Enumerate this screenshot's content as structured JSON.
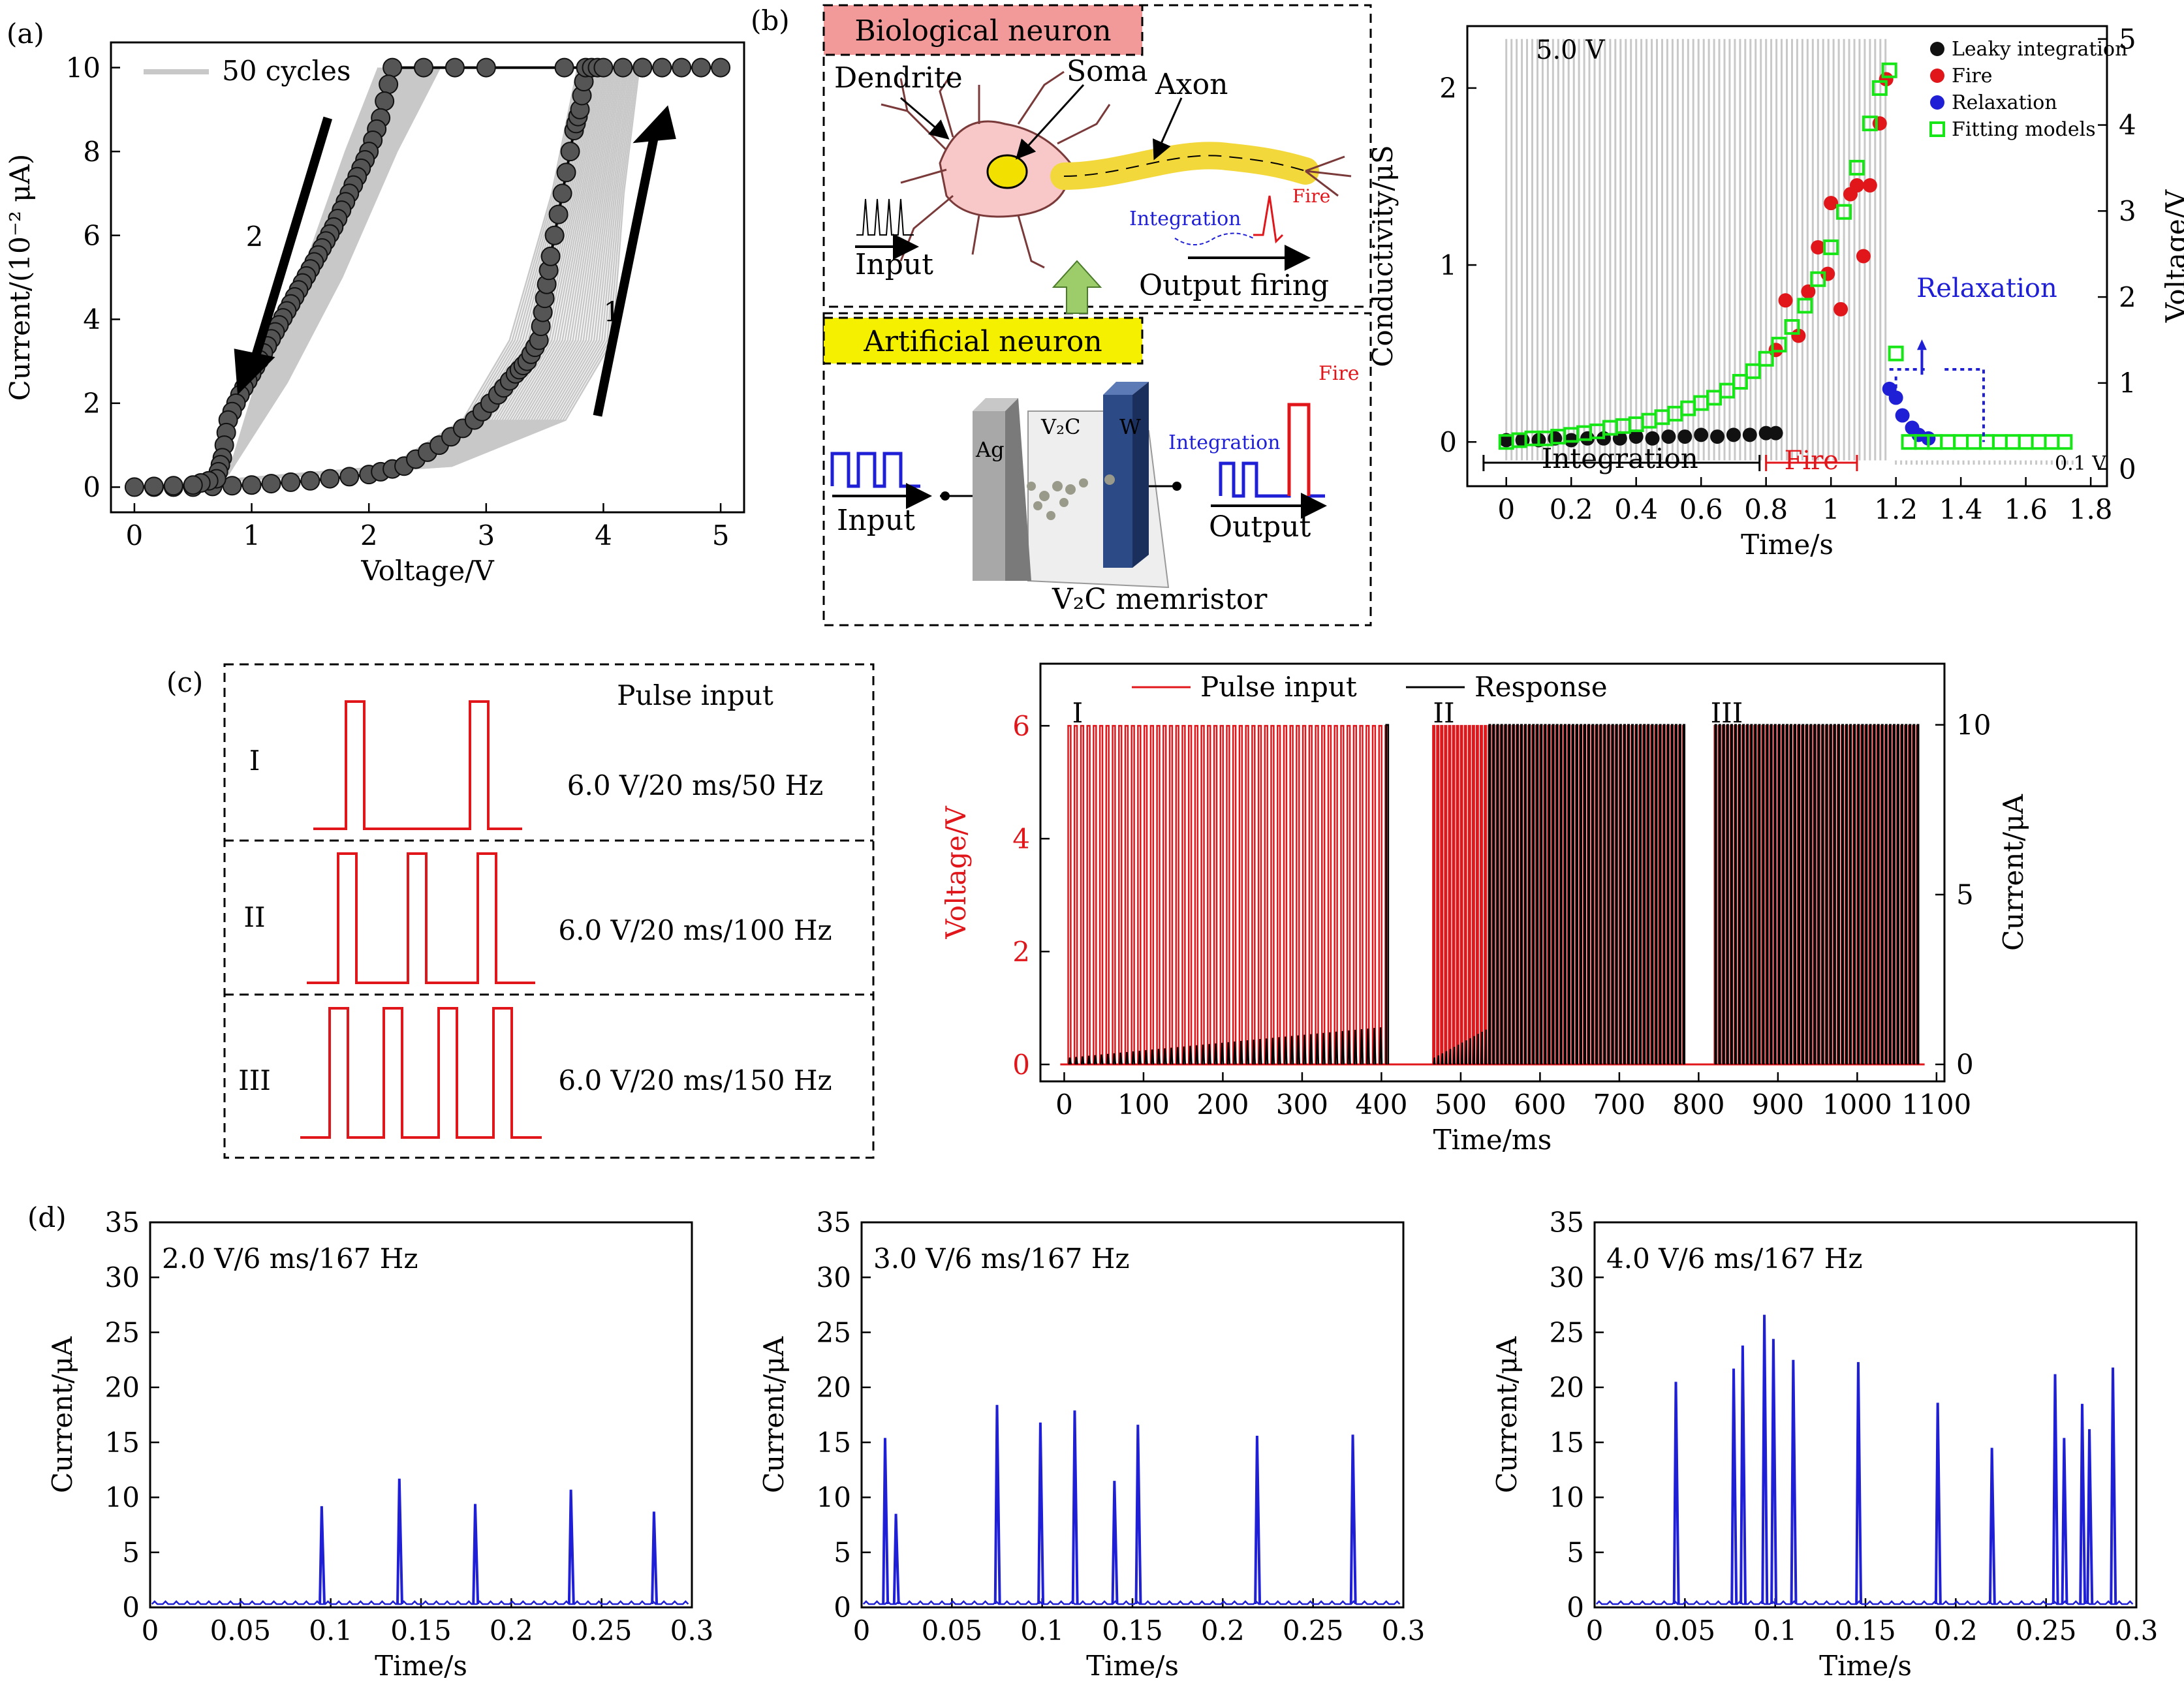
{
  "panel_labels": {
    "a": "(a)",
    "b": "(b)",
    "c": "(c)",
    "d": "(d)"
  },
  "colors": {
    "red": "#e0161b",
    "blue": "#1f1fd6",
    "green": "#16e616",
    "gray": "#c8c8c8",
    "pink": "#f29a9a",
    "yellow": "#f5f000",
    "axon": "#f2d83a",
    "dark_plate": "#2c4a86"
  },
  "schematic": {
    "bio_title": "Biological neuron",
    "dendrite": "Dendrite",
    "soma": "Soma",
    "axon": "Axon",
    "integration": "Integration",
    "fire": "Fire",
    "input": "Input",
    "output_firing": "Output firing",
    "art_title": "Artificial neuron",
    "ag": "Ag",
    "v2c": "V₂C",
    "w": "W",
    "art_integration": "Integration",
    "art_fire": "Fire",
    "art_input": "Input",
    "art_output": "Output",
    "memristor": "V₂C memristor"
  },
  "pulse_schematic": {
    "title": "Pulse input",
    "rows": [
      {
        "roman": "I",
        "label": "6.0 V/20 ms/50 Hz",
        "pulses": 2
      },
      {
        "roman": "II",
        "label": "6.0 V/20 ms/100 Hz",
        "pulses": 3
      },
      {
        "roman": "III",
        "label": "6.0 V/20 ms/150 Hz",
        "pulses": 4
      }
    ]
  },
  "chart_data": [
    {
      "id": "a",
      "type": "line",
      "xlabel": "Voltage/V",
      "ylabel": "Current/(10⁻² μA)",
      "xlim": [
        -0.2,
        5.2
      ],
      "ylim": [
        -0.6,
        10.6
      ],
      "xticks": [
        0,
        1,
        2,
        3,
        4,
        5
      ],
      "yticks": [
        0,
        2,
        4,
        6,
        8,
        10
      ],
      "legend": [
        "50 cycles"
      ],
      "annotations": [
        "1",
        "2"
      ],
      "series": [
        {
          "name": "sweep1",
          "x": [
            0,
            0.5,
            1.0,
            1.5,
            2.0,
            2.3,
            2.6,
            2.9,
            3.1,
            3.25,
            3.35,
            3.45,
            3.5,
            3.55,
            3.65,
            3.75,
            3.8,
            3.85,
            4.0,
            4.5,
            5.0
          ],
          "y": [
            0,
            0,
            0.05,
            0.15,
            0.3,
            0.5,
            1.0,
            1.6,
            2.2,
            2.7,
            3.0,
            3.5,
            4.5,
            5.5,
            7.0,
            8.5,
            9.0,
            10,
            10,
            10,
            10
          ]
        },
        {
          "name": "sweep2",
          "x": [
            5.0,
            3.0,
            2.2,
            2.1,
            2.0,
            1.9,
            1.8,
            1.7,
            1.6,
            1.5,
            1.4,
            1.3,
            1.2,
            1.1,
            1.0,
            0.9,
            0.8,
            0.75,
            0.7,
            0.5,
            0
          ],
          "y": [
            10,
            10,
            10,
            8.8,
            8.0,
            7.4,
            6.8,
            6.2,
            5.7,
            5.2,
            4.7,
            4.2,
            3.7,
            3.2,
            2.7,
            2.2,
            1.6,
            0.7,
            0.2,
            0.05,
            0
          ]
        }
      ]
    },
    {
      "id": "b",
      "type": "scatter",
      "xlabel": "Time/s",
      "ylabel": "Conductivity/μS",
      "ylabel_right": "Voltage/V",
      "xlim": [
        -0.12,
        1.85
      ],
      "ylim": [
        -0.25,
        2.35
      ],
      "ylim_right": [
        -0.2,
        5.15
      ],
      "xticks": [
        0,
        0.2,
        0.4,
        0.6,
        0.8,
        1.0,
        1.2,
        1.4,
        1.6,
        1.8
      ],
      "yticks": [
        0,
        1,
        2
      ],
      "yticks_right": [
        0,
        1,
        2,
        3,
        4,
        5
      ],
      "annotations": [
        "5.0 V",
        "0.1 V",
        "Integration",
        "Fire",
        "Relaxation"
      ],
      "legend": [
        "Leaky integration",
        "Fire",
        "Relaxation",
        "Fitting models"
      ],
      "series": [
        {
          "name": "Leaky integration",
          "x": [
            0,
            0.05,
            0.1,
            0.15,
            0.2,
            0.25,
            0.3,
            0.35,
            0.4,
            0.45,
            0.5,
            0.55,
            0.6,
            0.65,
            0.7,
            0.75,
            0.8,
            0.83
          ],
          "y": [
            0.01,
            0.01,
            0.01,
            0.02,
            0.01,
            0.02,
            0.02,
            0.02,
            0.03,
            0.02,
            0.03,
            0.03,
            0.04,
            0.03,
            0.04,
            0.04,
            0.05,
            0.05
          ]
        },
        {
          "name": "Fire",
          "x": [
            0.83,
            0.86,
            0.9,
            0.93,
            0.96,
            0.99,
            1.0,
            1.03,
            1.06,
            1.08,
            1.1,
            1.12,
            1.15,
            1.17
          ],
          "y": [
            0.52,
            0.8,
            0.6,
            0.85,
            1.1,
            0.95,
            1.35,
            0.75,
            1.4,
            1.45,
            1.05,
            1.45,
            1.8,
            2.05
          ]
        },
        {
          "name": "Relaxation",
          "x": [
            1.18,
            1.2,
            1.22,
            1.25,
            1.27,
            1.3
          ],
          "y": [
            0.3,
            0.25,
            0.15,
            0.08,
            0.04,
            0.02
          ]
        },
        {
          "name": "Fitting models",
          "x": [
            0,
            0.04,
            0.08,
            0.12,
            0.16,
            0.2,
            0.24,
            0.28,
            0.32,
            0.36,
            0.4,
            0.44,
            0.48,
            0.52,
            0.56,
            0.6,
            0.64,
            0.68,
            0.72,
            0.76,
            0.8,
            0.84,
            0.88,
            0.92,
            0.96,
            1.0,
            1.04,
            1.08,
            1.12,
            1.15,
            1.18,
            1.2,
            1.24,
            1.28,
            1.32,
            1.36,
            1.4,
            1.44,
            1.48,
            1.52,
            1.56,
            1.6,
            1.64,
            1.68,
            1.72
          ],
          "y": [
            0,
            0.01,
            0.02,
            0.02,
            0.03,
            0.04,
            0.05,
            0.06,
            0.08,
            0.09,
            0.1,
            0.12,
            0.14,
            0.16,
            0.19,
            0.22,
            0.25,
            0.29,
            0.34,
            0.4,
            0.47,
            0.55,
            0.65,
            0.77,
            0.92,
            1.1,
            1.3,
            1.55,
            1.8,
            2.0,
            2.1,
            0.5,
            0,
            0,
            0,
            0,
            0,
            0,
            0,
            0,
            0,
            0,
            0,
            0,
            0
          ]
        }
      ]
    },
    {
      "id": "c",
      "type": "line",
      "xlabel": "Time/ms",
      "ylabel": "Voltage/V",
      "ylabel_right": "Current/μA",
      "xlim": [
        -30,
        1110
      ],
      "ylim": [
        -0.3,
        7.1
      ],
      "ylim_right": [
        -0.5,
        11.8
      ],
      "xticks": [
        0,
        100,
        200,
        300,
        400,
        500,
        600,
        700,
        800,
        900,
        1000,
        1100
      ],
      "yticks": [
        0,
        2,
        4,
        6
      ],
      "yticks_right": [
        0,
        5,
        10
      ],
      "legend": [
        "Pulse input",
        "Response"
      ],
      "annotations": [
        "I",
        "II",
        "III"
      ],
      "segments": [
        {
          "label": "I",
          "t_start": 5,
          "t_end": 405,
          "period_ms": 8,
          "fire_ms": 400
        },
        {
          "label": "II",
          "t_start": 465,
          "t_end": 780,
          "period_ms": 5,
          "fire_ms": 535
        },
        {
          "label": "III",
          "t_start": 820,
          "t_end": 1075,
          "period_ms": 5,
          "fire_ms": 820
        }
      ]
    },
    {
      "id": "d1",
      "type": "line",
      "title": "2.0 V/6 ms/167 Hz",
      "xlabel": "Time/s",
      "ylabel": "Current/μA",
      "xlim": [
        0,
        0.3
      ],
      "ylim": [
        0,
        35
      ],
      "xticks": [
        0,
        0.05,
        0.1,
        0.15,
        0.2,
        0.25,
        0.3
      ],
      "yticks": [
        0,
        5,
        10,
        15,
        20,
        25,
        30,
        35
      ],
      "spikes_x": [
        0.095,
        0.138,
        0.18,
        0.233,
        0.279
      ],
      "spikes_y": [
        9.2,
        11.7,
        9.4,
        10.7,
        8.7
      ]
    },
    {
      "id": "d2",
      "type": "line",
      "title": "3.0 V/6 ms/167 Hz",
      "xlabel": "Time/s",
      "ylabel": "Current/μA",
      "xlim": [
        0,
        0.3
      ],
      "ylim": [
        0,
        35
      ],
      "xticks": [
        0,
        0.05,
        0.1,
        0.15,
        0.2,
        0.25,
        0.3
      ],
      "yticks": [
        0,
        5,
        10,
        15,
        20,
        25,
        30,
        35
      ],
      "spikes_x": [
        0.013,
        0.019,
        0.075,
        0.099,
        0.118,
        0.14,
        0.153,
        0.219,
        0.272
      ],
      "spikes_y": [
        15.4,
        8.5,
        18.4,
        16.8,
        17.9,
        11.5,
        16.6,
        15.6,
        15.7
      ]
    },
    {
      "id": "d3",
      "type": "line",
      "title": "4.0 V/6 ms/167 Hz",
      "xlabel": "Time/s",
      "ylabel": "Current/μA",
      "xlim": [
        0,
        0.3
      ],
      "ylim": [
        0,
        35
      ],
      "xticks": [
        0,
        0.05,
        0.1,
        0.15,
        0.2,
        0.25,
        0.3
      ],
      "yticks": [
        0,
        5,
        10,
        15,
        20,
        25,
        30,
        35
      ],
      "spikes_x": [
        0.045,
        0.077,
        0.082,
        0.094,
        0.099,
        0.11,
        0.146,
        0.19,
        0.22,
        0.255,
        0.26,
        0.27,
        0.274,
        0.287
      ],
      "spikes_y": [
        20.5,
        21.7,
        23.8,
        26.6,
        24.4,
        22.5,
        22.3,
        18.6,
        14.5,
        21.2,
        15.4,
        18.5,
        16.2,
        21.8
      ]
    }
  ]
}
